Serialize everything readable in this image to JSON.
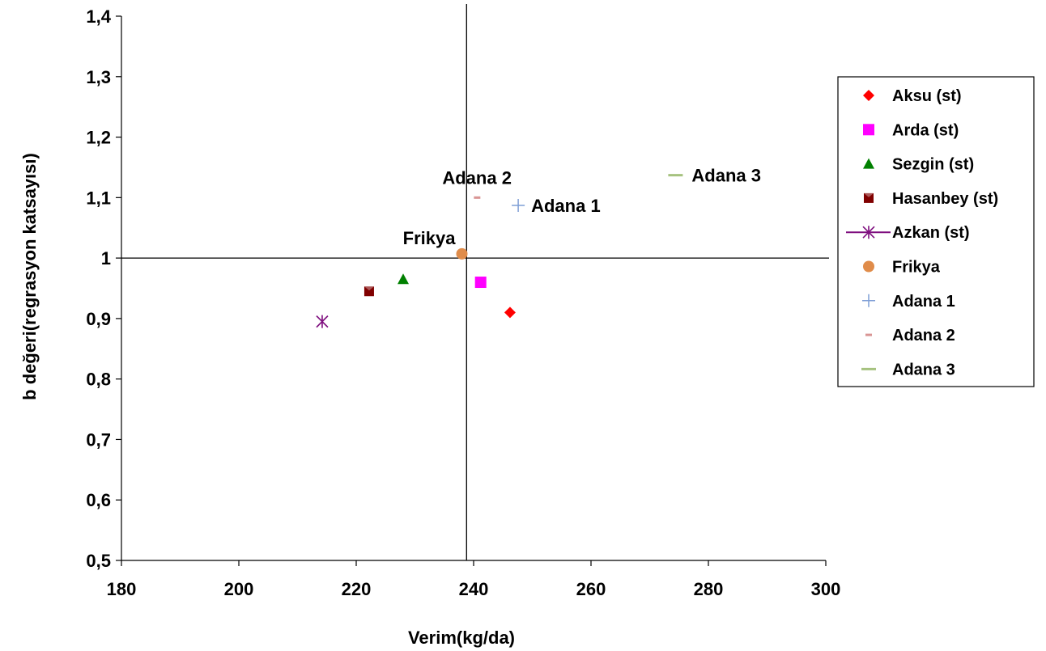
{
  "chart_data": {
    "type": "scatter",
    "xlabel": "Verim(kg/da)",
    "ylabel": "b değeri(regrasyon katsayısı)",
    "xlim": [
      180,
      300
    ],
    "ylim": [
      0.5,
      1.4
    ],
    "x_ticks": [
      "180",
      "200",
      "220",
      "240",
      "260",
      "280",
      "300"
    ],
    "y_ticks": [
      "0,5",
      "0,6",
      "0,7",
      "0,8",
      "0,9",
      "1",
      "1,1",
      "1,2",
      "1,3",
      "1,4"
    ],
    "reference_lines": {
      "x": 238.8,
      "y": 1.0
    },
    "grid": false,
    "legend_position": "right",
    "series": [
      {
        "name": "Aksu (st)",
        "marker": "diamond",
        "color": "#ff0000",
        "x": 246.2,
        "y": 0.91,
        "label": ""
      },
      {
        "name": "Arda (st)",
        "marker": "square",
        "color": "#ff00ff",
        "x": 241.2,
        "y": 0.96,
        "label": ""
      },
      {
        "name": "Sezgin (st)",
        "marker": "triangle",
        "color": "#008000",
        "x": 228.0,
        "y": 0.965,
        "label": ""
      },
      {
        "name": "Hasanbey (st)",
        "marker": "hourglass",
        "color": "#800000",
        "x": 222.2,
        "y": 0.945,
        "label": ""
      },
      {
        "name": "Azkan (st)",
        "marker": "asterisk",
        "color": "#7f0f7f",
        "x": 214.2,
        "y": 0.895,
        "label": ""
      },
      {
        "name": "Frikya",
        "marker": "circle",
        "color": "#e08c4a",
        "x": 238.0,
        "y": 1.007,
        "label": "Frikya"
      },
      {
        "name": "Adana 1",
        "marker": "plus",
        "color": "#7f9fd6",
        "x": 247.6,
        "y": 1.087,
        "label": "Adana 1"
      },
      {
        "name": "Adana 2",
        "marker": "dash",
        "color": "#d99594",
        "x": 240.6,
        "y": 1.1,
        "label": "Adana 2"
      },
      {
        "name": "Adana 3",
        "marker": "dash-wide",
        "color": "#a6c27f",
        "x": 274.4,
        "y": 1.137,
        "label": "Adana 3"
      }
    ]
  }
}
